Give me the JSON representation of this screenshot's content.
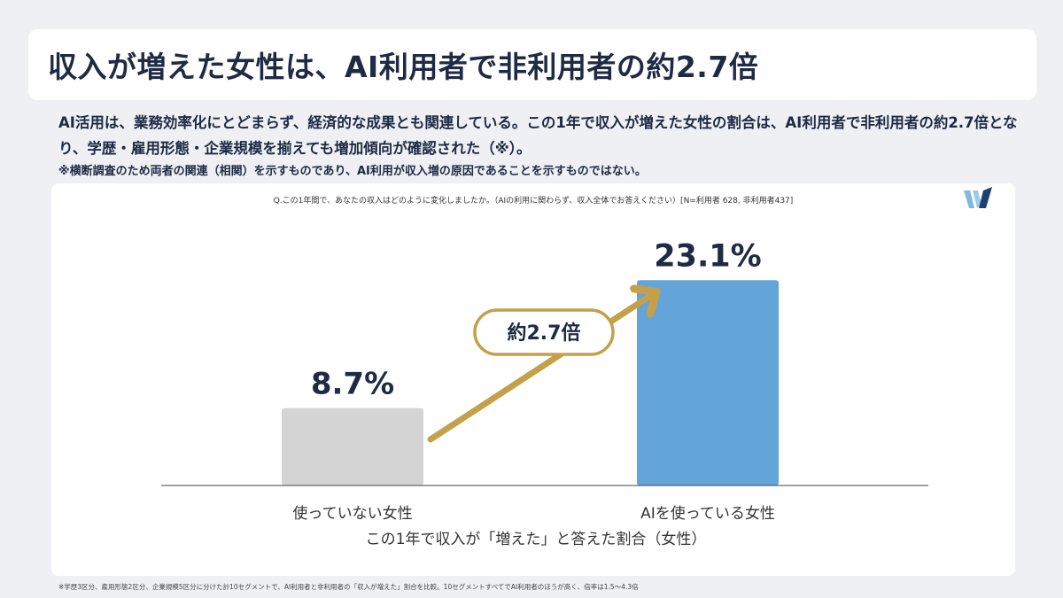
{
  "title": "収入が増えた女性は、AI利用者で非利用者の約2.7倍",
  "description": "AI活用は、業務効率化にとどまらず、経済的な成果とも関連している。この1年で収入が増えた女性の割合は、AI利用者で非利用者の約2.7倍となり、学歴・雇用形態・企業規模を揃えても増加傾向が確認された（※）。",
  "note": "※横断調査のため両者の関連（相関）を示すものであり、AI利用が収入増の原因であることを示すものではない。",
  "question": "Q.この1年間で、あなたの収入はどのように変化しましたか。（AIの利用に関わらず、収入全体でお答えください）[N=利用者 628, 非利用者437]",
  "footnote": "※学歴3区分、雇用形態2区分、企業規模5区分に分けた計10セグメントで、AI利用者と非利用者の「収入が増えた」割合を比較。10セグメントすべてでAI利用者のほうが高く、倍率は1.5〜4.3倍",
  "logo": {
    "icon": "w-logo-icon",
    "colors": [
      "#7fb8e0",
      "#1f3f70"
    ]
  },
  "chart_data": {
    "type": "bar",
    "categories": [
      "使っていない女性",
      "AIを使っている女性"
    ],
    "values": [
      8.7,
      23.1
    ],
    "value_labels": [
      "8.7%",
      "23.1%"
    ],
    "colors": [
      "#d4d4d4",
      "#63a4d9"
    ],
    "xlabel": "この1年で収入が「増えた」と答えた割合（女性）",
    "ylim": [
      0,
      25
    ],
    "grid": false,
    "annotation": {
      "text": "約2.7倍",
      "color": "#c4a04a",
      "text_color": "#1f2a44"
    }
  }
}
